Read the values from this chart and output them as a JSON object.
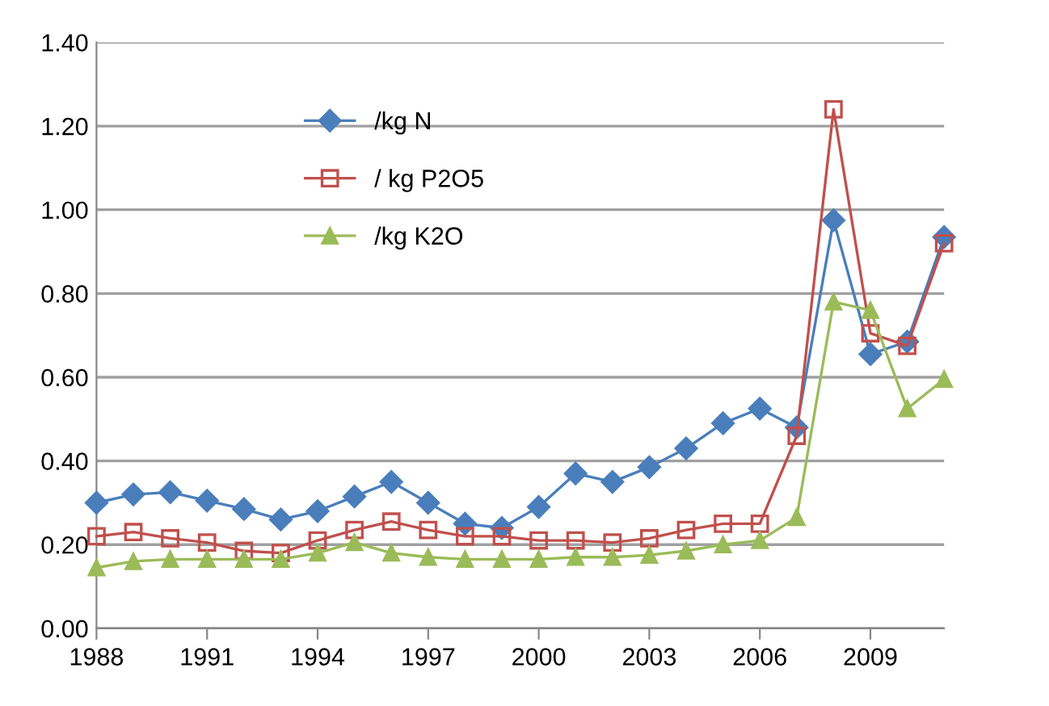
{
  "chart_data": {
    "type": "line",
    "x": [
      1988,
      1989,
      1990,
      1991,
      1992,
      1993,
      1994,
      1995,
      1996,
      1997,
      1998,
      1999,
      2000,
      2001,
      2002,
      2003,
      2004,
      2005,
      2006,
      2007,
      2008,
      2009,
      2010,
      2011
    ],
    "series": [
      {
        "name": "/kg N",
        "color": "#4a7ebb",
        "marker": "diamond",
        "values": [
          0.3,
          0.32,
          0.325,
          0.305,
          0.285,
          0.26,
          0.28,
          0.315,
          0.35,
          0.3,
          0.25,
          0.24,
          0.29,
          0.37,
          0.35,
          0.385,
          0.43,
          0.49,
          0.525,
          0.48,
          0.975,
          0.655,
          0.685,
          0.935
        ]
      },
      {
        "name": "/ kg P2O5",
        "color": "#c0504d",
        "marker": "square",
        "values": [
          0.22,
          0.23,
          0.215,
          0.205,
          0.185,
          0.18,
          0.21,
          0.235,
          0.255,
          0.235,
          0.22,
          0.22,
          0.21,
          0.21,
          0.205,
          0.215,
          0.235,
          0.25,
          0.25,
          0.46,
          1.24,
          0.705,
          0.675,
          0.92
        ]
      },
      {
        "name": "/kg K2O",
        "color": "#9bbb59",
        "marker": "triangle",
        "values": [
          0.145,
          0.16,
          0.165,
          0.165,
          0.165,
          0.165,
          0.18,
          0.205,
          0.18,
          0.17,
          0.165,
          0.165,
          0.165,
          0.17,
          0.17,
          0.175,
          0.185,
          0.2,
          0.21,
          0.265,
          0.78,
          0.76,
          0.525,
          0.595
        ]
      }
    ],
    "xlim": [
      1988,
      2011
    ],
    "xticks": [
      1988,
      1991,
      1994,
      1997,
      2000,
      2003,
      2006,
      2009
    ],
    "ylim": [
      0,
      1.4
    ],
    "yticks": [
      {
        "value": 0,
        "label": "0.00"
      },
      {
        "value": 0.2,
        "label": "0.20"
      },
      {
        "value": 0.4,
        "label": "0.40"
      },
      {
        "value": 0.6,
        "label": "0.60"
      },
      {
        "value": 0.8,
        "label": "0.80"
      },
      {
        "value": 1.0,
        "label": "1.00"
      },
      {
        "value": 1.2,
        "label": "1.20"
      },
      {
        "value": 1.4,
        "label": "1.40"
      }
    ],
    "grid": "y",
    "legend": "top left",
    "line_style": "solid"
  }
}
